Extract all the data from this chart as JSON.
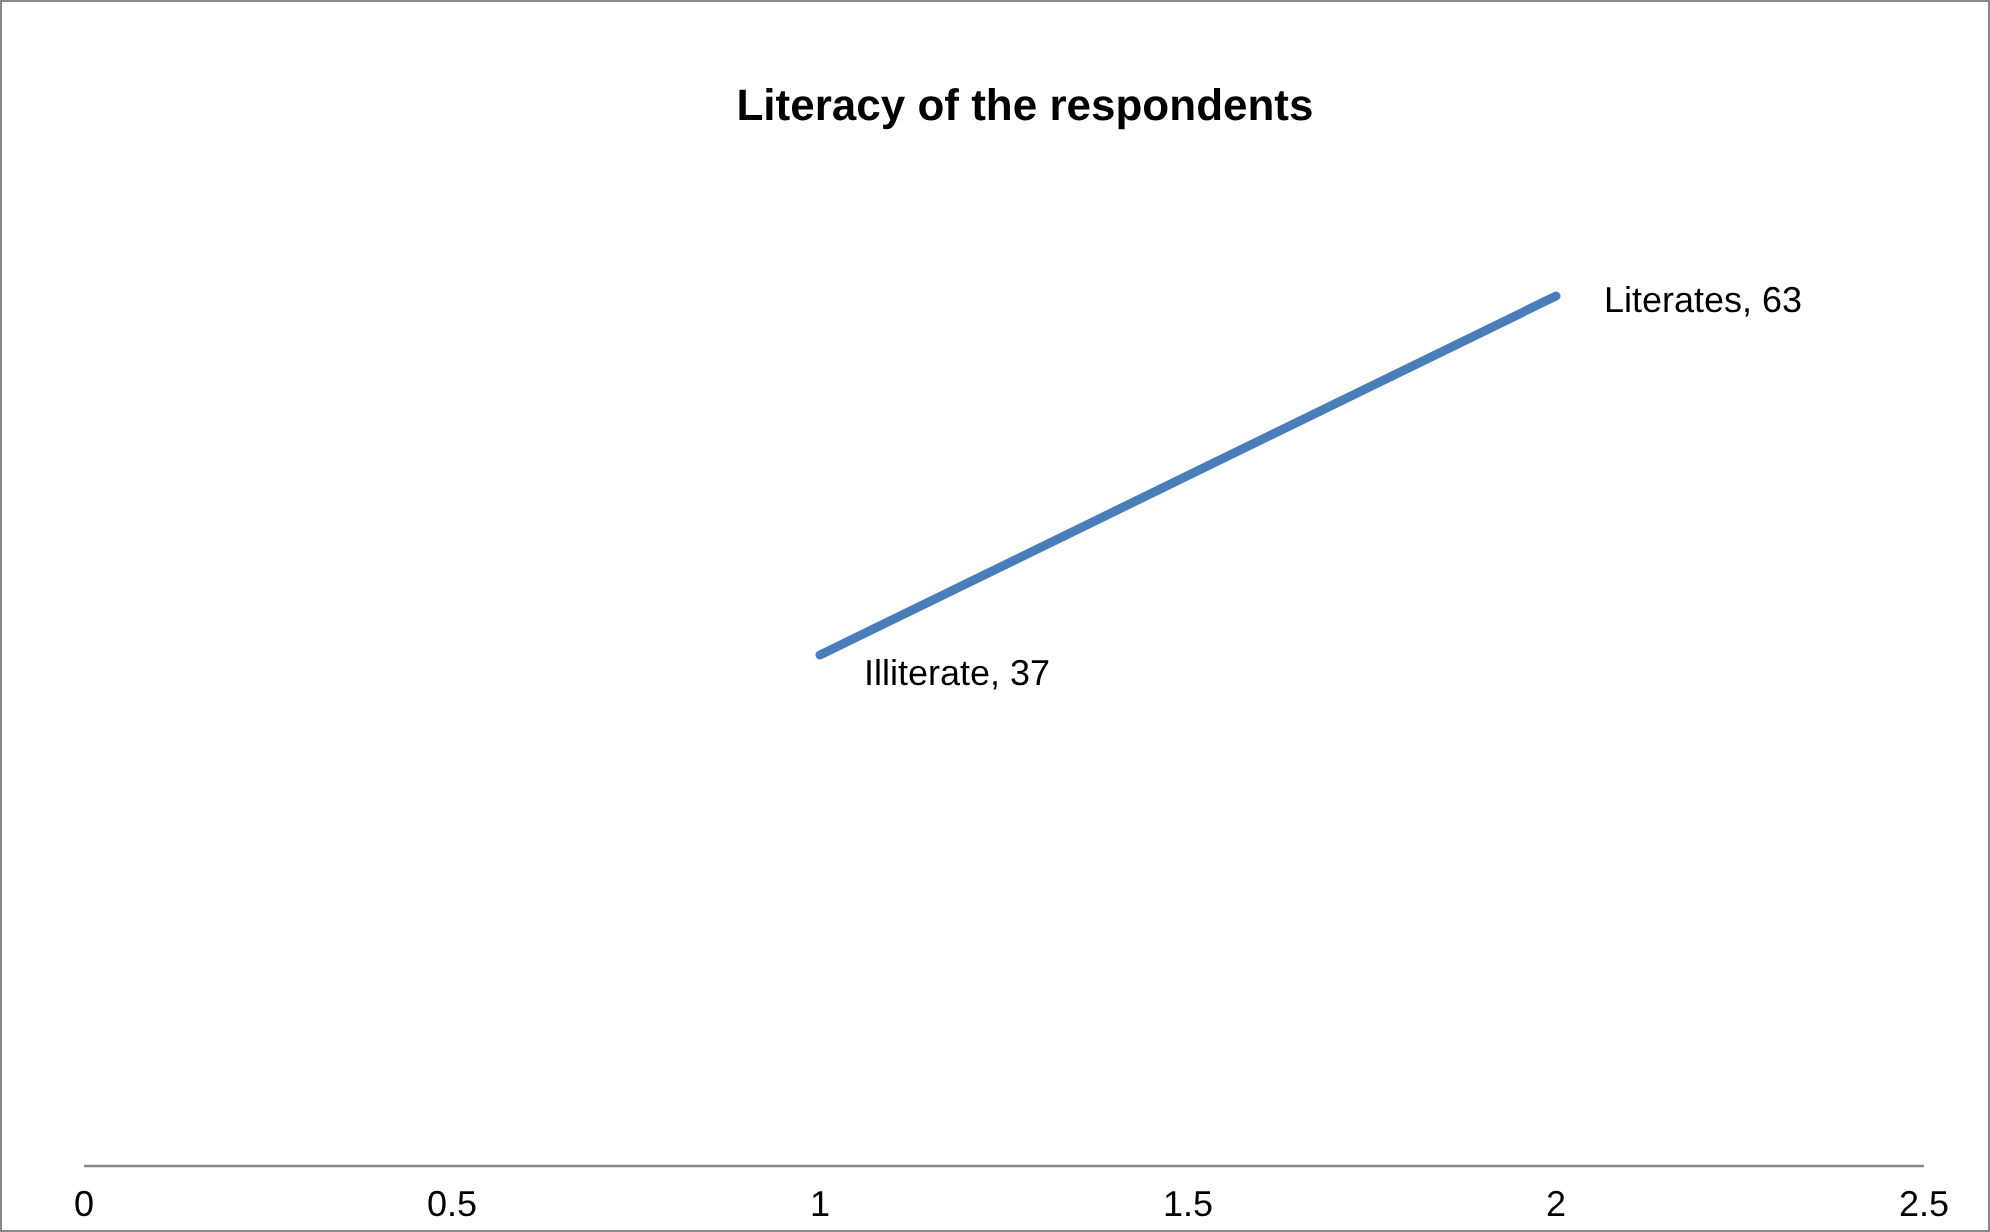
{
  "chart_data": {
    "type": "line",
    "title": "Literacy of the respondents",
    "x": [
      1,
      2
    ],
    "series": [
      {
        "color": "#4a7ebb",
        "values": [
          37,
          63
        ],
        "value_labels": [
          "Illiterate, 37",
          "Literates, 63"
        ]
      }
    ],
    "xlim": [
      0,
      2.5
    ],
    "xticks": [
      0,
      0.5,
      1,
      1.5,
      2,
      2.5
    ],
    "tick_labels": "x",
    "marker": "none",
    "line_style": "solid"
  }
}
